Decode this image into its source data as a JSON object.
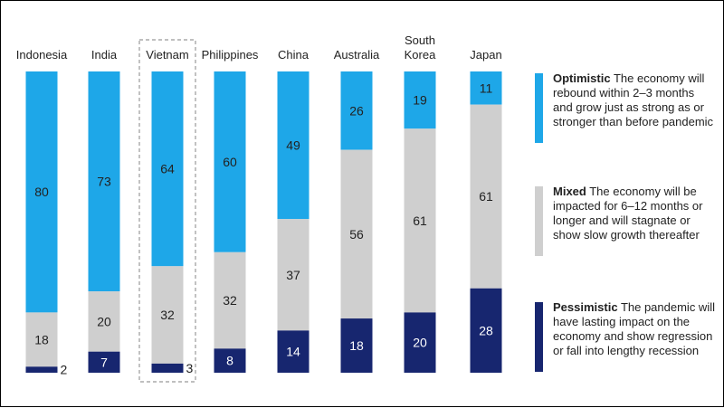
{
  "colors": {
    "optimistic": "#1ea7e8",
    "mixed": "#cfcfcf",
    "pessimistic": "#17266f"
  },
  "chart_data": {
    "type": "bar",
    "stacked": true,
    "categories": [
      "Indonesia",
      "India",
      "Vietnam",
      "Philippines",
      "China",
      "Australia",
      "South Korea",
      "Japan"
    ],
    "series": [
      {
        "name": "Optimistic",
        "values": [
          80,
          73,
          64,
          60,
          49,
          26,
          19,
          11
        ]
      },
      {
        "name": "Mixed",
        "values": [
          18,
          20,
          32,
          32,
          37,
          56,
          61,
          61
        ]
      },
      {
        "name": "Pessimistic",
        "values": [
          2,
          7,
          3,
          8,
          14,
          18,
          20,
          28
        ]
      }
    ],
    "highlighted_category": "Vietnam",
    "legend_position": "right"
  },
  "legend": {
    "optimistic": {
      "title": "Optimistic",
      "description": "The economy will rebound within 2–3 months and grow just as strong as or stronger than before pandemic"
    },
    "mixed": {
      "title": "Mixed",
      "description": "The economy will be impacted for 6–12 months or longer and will stagnate or show slow growth thereafter"
    },
    "pessimistic": {
      "title": "Pessimistic",
      "description": "The pandemic will have lasting impact on the economy and show regression or fall into lengthy recession"
    }
  }
}
